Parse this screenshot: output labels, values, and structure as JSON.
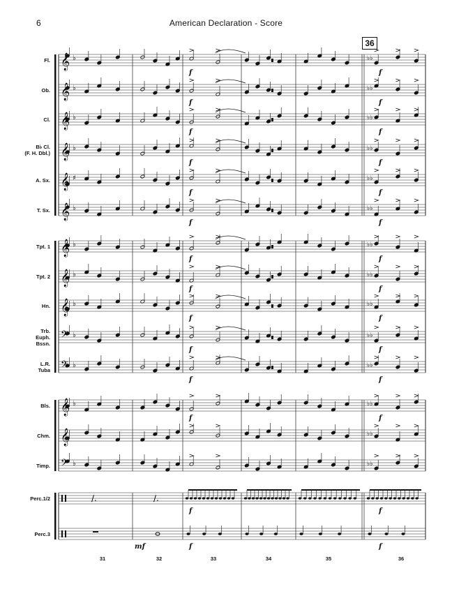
{
  "header": {
    "page_number": "6",
    "title": "American Declaration - Score"
  },
  "rehearsal_mark": "36",
  "instruments": [
    {
      "id": "fl",
      "label": "Fl.",
      "clef": "treble"
    },
    {
      "id": "ob",
      "label": "Ob.",
      "clef": "treble"
    },
    {
      "id": "cl",
      "label": "Cl.",
      "clef": "treble"
    },
    {
      "id": "bcl",
      "label": "B♭ Cl.\n(F. H. Dbl.)",
      "clef": "treble"
    },
    {
      "id": "asx",
      "label": "A. Sx.",
      "clef": "treble"
    },
    {
      "id": "tsx",
      "label": "T. Sx.",
      "clef": "treble"
    },
    {
      "id": "tpt1",
      "label": "Tpt. 1",
      "clef": "treble"
    },
    {
      "id": "tpt2",
      "label": "Tpt. 2",
      "clef": "treble"
    },
    {
      "id": "hn",
      "label": "Hn.",
      "clef": "treble"
    },
    {
      "id": "trb",
      "label": "Trb.\nEuph.\nBssn.",
      "clef": "bass"
    },
    {
      "id": "tuba",
      "label": "L.R.\nTuba",
      "clef": "bass"
    },
    {
      "id": "bls",
      "label": "Bls.",
      "clef": "treble"
    },
    {
      "id": "chm",
      "label": "Chm.",
      "clef": "treble"
    },
    {
      "id": "timp",
      "label": "Timp.",
      "clef": "bass"
    },
    {
      "id": "perc12",
      "label": "Perc.1/2",
      "clef": "percussion"
    },
    {
      "id": "perc3",
      "label": "Perc.3",
      "clef": "percussion"
    }
  ],
  "measure_numbers": [
    "31",
    "32",
    "33",
    "34",
    "35",
    "36"
  ],
  "dynamics": {
    "forte": "f",
    "mezzo_forte": "mf"
  }
}
